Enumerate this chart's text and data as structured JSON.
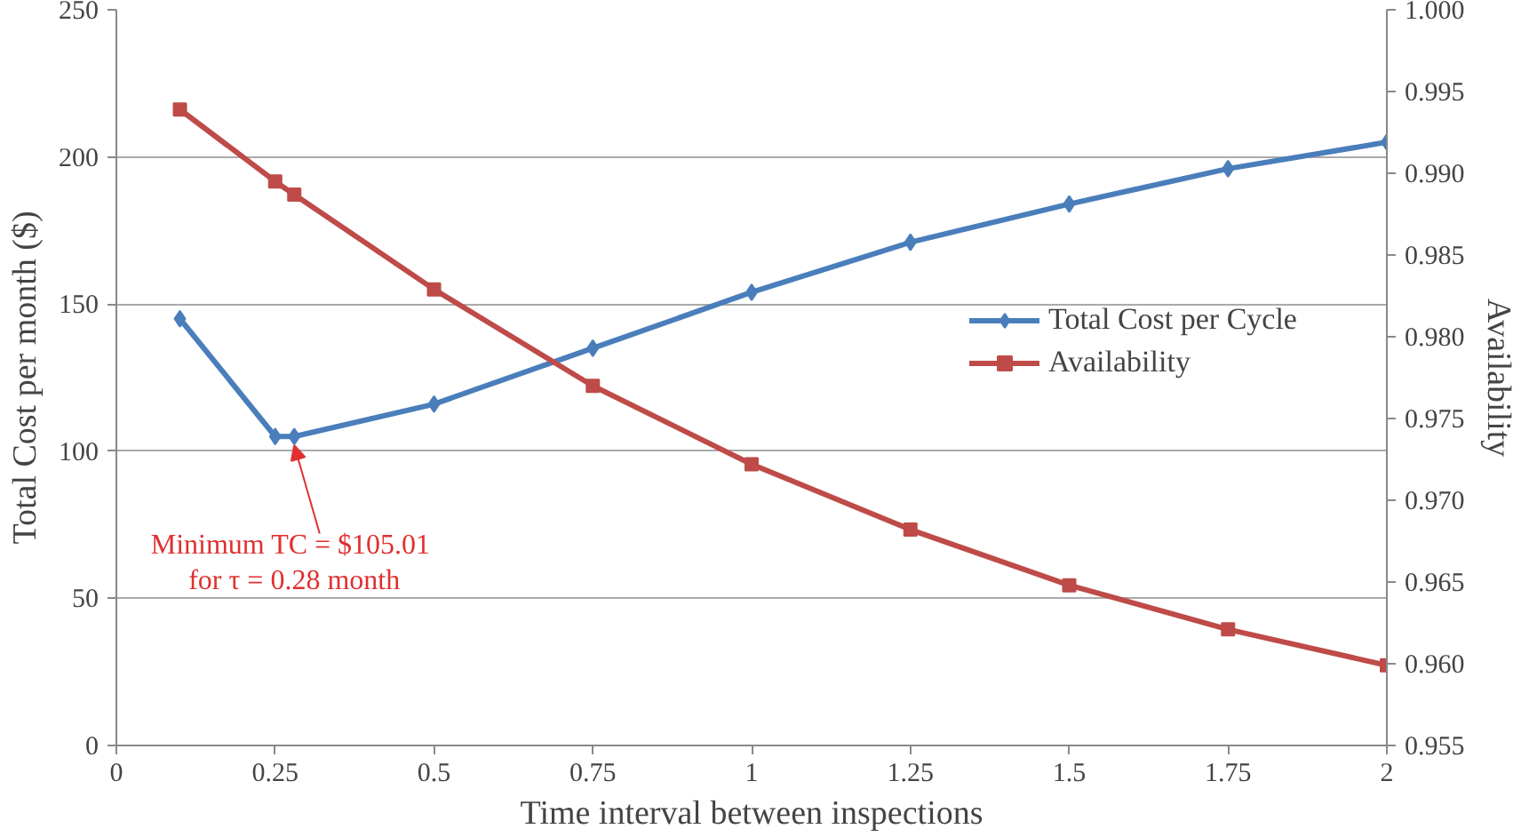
{
  "chart_data": {
    "type": "line",
    "xlabel": "Time interval between inspections",
    "ylabel": "Total Cost per month ($)",
    "y2label": "Availability",
    "x": [
      0.1,
      0.25,
      0.28,
      0.5,
      0.75,
      1,
      1.25,
      1.5,
      1.75,
      2
    ],
    "series": [
      {
        "name": "Total Cost per Cycle",
        "color": "#4a7ebb",
        "marker": "diamond",
        "values": [
          145,
          105,
          105.01,
          116,
          135,
          154,
          171,
          184,
          196,
          205
        ]
      },
      {
        "name": "Availability",
        "color": "#be4b48",
        "marker": "square",
        "axis": "y2",
        "values": [
          0.9939,
          0.9895,
          0.9887,
          0.9829,
          0.977,
          0.9722,
          0.9682,
          0.9648,
          0.9621,
          0.9599
        ]
      }
    ],
    "xlim": [
      0,
      2
    ],
    "xticks": [
      0,
      0.25,
      0.5,
      0.75,
      1,
      1.25,
      1.5,
      1.75,
      2
    ],
    "ylim": [
      0,
      250
    ],
    "yticks": [
      0,
      50,
      100,
      150,
      200,
      250
    ],
    "y2lim": [
      0.955,
      1.0
    ],
    "y2ticks": [
      {
        "value": 0.955,
        "label": "0.955"
      },
      {
        "value": 0.96,
        "label": "0.960"
      },
      {
        "value": 0.965,
        "label": "0.965"
      },
      {
        "value": 0.97,
        "label": "0.970"
      },
      {
        "value": 0.975,
        "label": "0.975"
      },
      {
        "value": 0.98,
        "label": "0.980"
      },
      {
        "value": 0.985,
        "label": "0.985"
      },
      {
        "value": 0.99,
        "label": "0.990"
      },
      {
        "value": 0.995,
        "label": "0.995"
      },
      {
        "value": 1.0,
        "label": "1.000"
      }
    ],
    "annotations": [
      {
        "text": "Minimum  TC = $105.01\nfor τ = 0.28 month",
        "x": 0.28,
        "y": 105.01
      }
    ],
    "grid": "y",
    "legend": "right",
    "line_style": "solid"
  }
}
